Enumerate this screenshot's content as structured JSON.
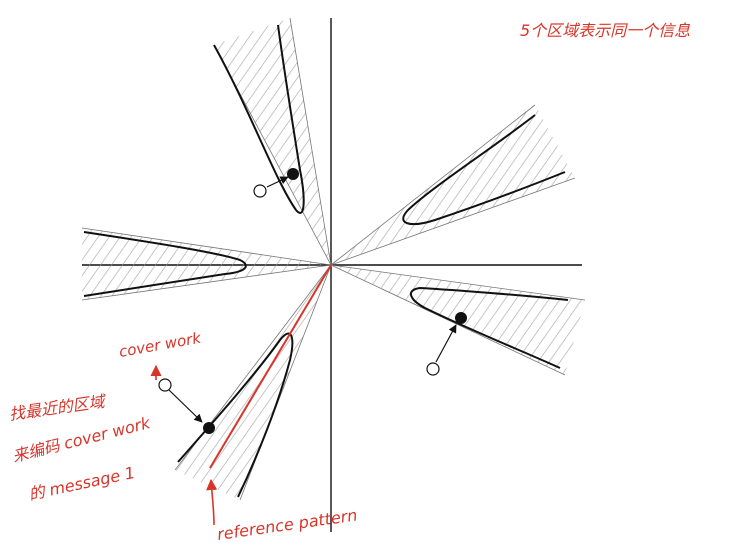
{
  "annotations": {
    "top_right": "5个区域表示同一个信息",
    "cover_work": "cover work",
    "line1": "找最近的区域",
    "line2": "来编码 cover work",
    "line3": "的 message 1",
    "reference_pattern": "reference pattern"
  },
  "colors": {
    "ink": "#111111",
    "hatch": "#9a9a9a",
    "annotation": "#d8352a"
  }
}
